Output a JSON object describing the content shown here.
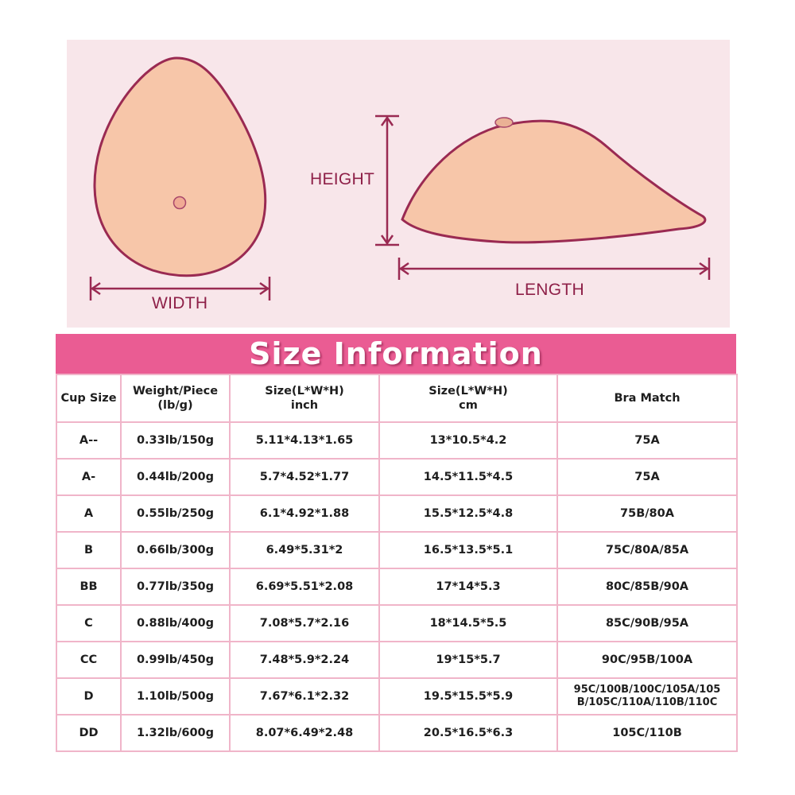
{
  "diagram": {
    "width_label": "WIDTH",
    "height_label": "HEIGHT",
    "length_label": "LENGTH",
    "colors": {
      "panel": "#f8e6ea",
      "skin": "#f7c6a9",
      "outline": "#9a2a52",
      "label": "#8e2048"
    }
  },
  "table": {
    "title": "Size Information",
    "headers": {
      "cup_size": "Cup Size",
      "weight_line1": "Weight/Piece",
      "weight_line2": "(lb/g)",
      "inch_line1": "Size(L*W*H)",
      "inch_line2": "inch",
      "cm_line1": "Size(L*W*H)",
      "cm_line2": "cm",
      "bra_match": "Bra Match"
    },
    "rows": [
      {
        "cup": "A--",
        "weight": "0.33lb/150g",
        "inch": "5.11*4.13*1.65",
        "cm": "13*10.5*4.2",
        "bra": "75A"
      },
      {
        "cup": "A-",
        "weight": "0.44lb/200g",
        "inch": "5.7*4.52*1.77",
        "cm": "14.5*11.5*4.5",
        "bra": "75A"
      },
      {
        "cup": "A",
        "weight": "0.55lb/250g",
        "inch": "6.1*4.92*1.88",
        "cm": "15.5*12.5*4.8",
        "bra": "75B/80A"
      },
      {
        "cup": "B",
        "weight": "0.66lb/300g",
        "inch": "6.49*5.31*2",
        "cm": "16.5*13.5*5.1",
        "bra": "75C/80A/85A"
      },
      {
        "cup": "BB",
        "weight": "0.77lb/350g",
        "inch": "6.69*5.51*2.08",
        "cm": "17*14*5.3",
        "bra": "80C/85B/90A"
      },
      {
        "cup": "C",
        "weight": "0.88lb/400g",
        "inch": "7.08*5.7*2.16",
        "cm": "18*14.5*5.5",
        "bra": "85C/90B/95A"
      },
      {
        "cup": "CC",
        "weight": "0.99lb/450g",
        "inch": "7.48*5.9*2.24",
        "cm": "19*15*5.7",
        "bra": "90C/95B/100A"
      },
      {
        "cup": "D",
        "weight": "1.10lb/500g",
        "inch": "7.67*6.1*2.32",
        "cm": "19.5*15.5*5.9",
        "bra": "95C/100B/100C/105A/105\nB/105C/110A/110B/110C"
      },
      {
        "cup": "DD",
        "weight": "1.32lb/600g",
        "inch": "8.07*6.49*2.48",
        "cm": "20.5*16.5*6.3",
        "bra": "105C/110B"
      }
    ]
  }
}
